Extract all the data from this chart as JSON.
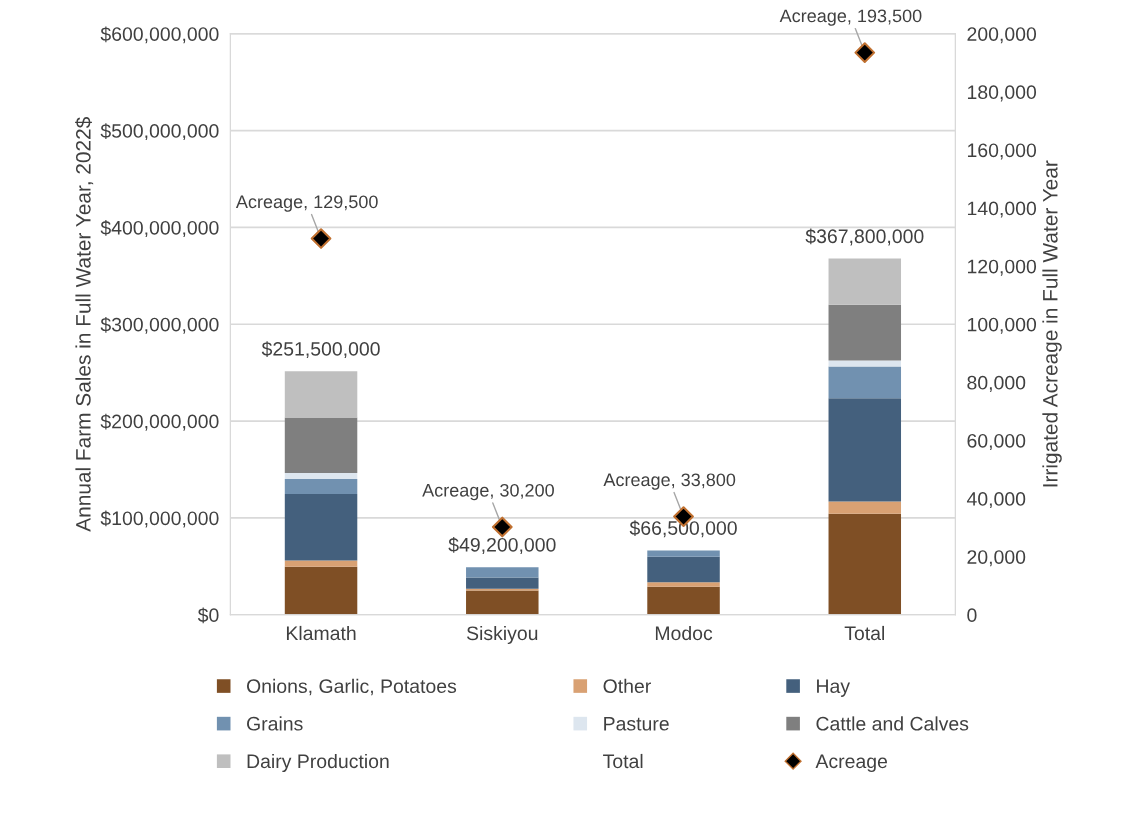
{
  "chart_data": {
    "type": "bar",
    "stacked": true,
    "categories": [
      "Klamath",
      "Siskiyou",
      "Modoc",
      "Total"
    ],
    "ylabel": "Annual Farm Sales in Full Water Year, 2022$",
    "y2label": "Irrigated Acreage in Full Water Year",
    "series": [
      {
        "name": "Onions, Garlic, Potatoes",
        "color": "#7f4f25",
        "values": [
          49600000,
          25000000,
          29000000,
          104200000
        ]
      },
      {
        "name": "Other",
        "color": "#d9a173",
        "values": [
          6500000,
          1800000,
          4600000,
          12900000
        ]
      },
      {
        "name": "Hay",
        "color": "#44607d",
        "values": [
          68600000,
          11800000,
          26200000,
          106600000
        ]
      },
      {
        "name": "Grains",
        "color": "#7191b0",
        "values": [
          15500000,
          10600000,
          6700000,
          32800000
        ]
      },
      {
        "name": "Pasture",
        "color": "#dde6ef",
        "values": [
          6200000,
          0,
          0,
          6200000
        ]
      },
      {
        "name": "Cattle and Calves",
        "color": "#7f7f7f",
        "values": [
          57400000,
          0,
          0,
          57400000
        ]
      },
      {
        "name": "Dairy Production",
        "color": "#bfbfbf",
        "values": [
          47700000,
          0,
          0,
          47700000
        ]
      },
      {
        "name": "Total",
        "color": null,
        "values": [
          null,
          null,
          null,
          null
        ]
      },
      {
        "name": "Acreage",
        "type": "scatter",
        "axis": "y2",
        "color": "#000000",
        "marker": "diamond",
        "values": [
          129500,
          30200,
          33800,
          193500
        ],
        "value_labels": [
          "Acreage, 129,500",
          "Acreage, 30,200",
          "Acreage, 33,800",
          "Acreage, 193,500"
        ]
      }
    ],
    "totals": [
      "$251,500,000",
      "$49,200,000",
      "$66,500,000",
      "$367,800,000"
    ],
    "ylim": [
      0,
      600000000
    ],
    "yticks": [
      {
        "value": 0,
        "label": "$0"
      },
      {
        "value": 100000000,
        "label": "$100,000,000"
      },
      {
        "value": 200000000,
        "label": "$200,000,000"
      },
      {
        "value": 300000000,
        "label": "$300,000,000"
      },
      {
        "value": 400000000,
        "label": "$400,000,000"
      },
      {
        "value": 500000000,
        "label": "$500,000,000"
      },
      {
        "value": 600000000,
        "label": "$600,000,000"
      }
    ],
    "y2lim": [
      0,
      200000
    ],
    "y2ticks": [
      0,
      {
        "value": 20000,
        "label": "20,000"
      },
      {
        "value": 40000,
        "label": "40,000"
      },
      {
        "value": 60000,
        "label": "60,000"
      },
      {
        "value": 80000,
        "label": "80,000"
      },
      {
        "value": 100000,
        "label": "100,000"
      },
      {
        "value": 120000,
        "label": "120,000"
      },
      {
        "value": 140000,
        "label": "140,000"
      },
      {
        "value": 160000,
        "label": "160,000"
      },
      {
        "value": 180000,
        "label": "180,000"
      },
      {
        "value": 200000,
        "label": "200,000"
      }
    ],
    "grid": "y",
    "legend": "bottom"
  }
}
